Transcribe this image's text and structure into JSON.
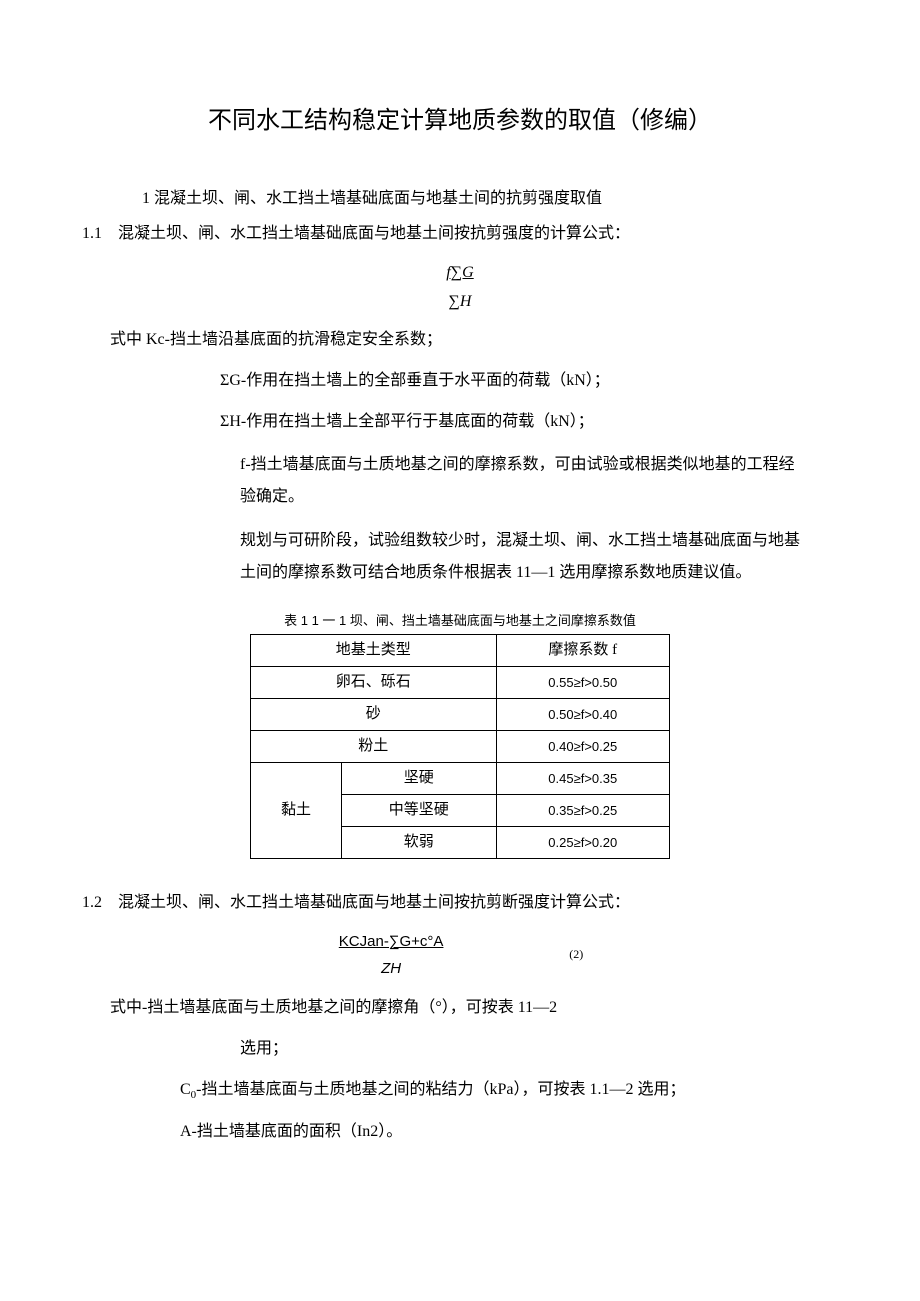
{
  "title": "不同水工结构稳定计算地质参数的取值（修编）",
  "section1": "1 混凝土坝、闸、水工挡土墙基础底面与地基土间的抗剪强度取值",
  "sub11_heading": "1.1　混凝土坝、闸、水工挡土墙基础底面与地基土间按抗剪强度的计算公式：",
  "formula1_num": "f∑G",
  "formula1_den": "∑H",
  "def_kc": "式中 Kc-挡土墙沿基底面的抗滑稳定安全系数；",
  "def_g": "ΣG-作用在挡土墙上的全部垂直于水平面的荷载（kN）；",
  "def_h": "ΣH-作用在挡土墙上全部平行于基底面的荷载（kN）；",
  "def_f": "f-挡土墙基底面与土质地基之间的摩擦系数，可由试验或根据类似地基的工程经验确定。",
  "def_note": "规划与可研阶段，试验组数较少时，混凝土坝、闸、水工挡土墙基础底面与地基土间的摩擦系数可结合地质条件根据表 11—1 选用摩擦系数地质建议值。",
  "table_caption": "表 1 1 一 1 坝、闸、挡土墙基础底面与地基土之间摩擦系数值",
  "table": {
    "header": {
      "c1": "地基土类型",
      "c2": "摩擦系数 f"
    },
    "rows": [
      {
        "c1": "卵石、砾石",
        "c2": "0.55≥f>0.50"
      },
      {
        "c1": "砂",
        "c2": "0.50≥f>0.40"
      },
      {
        "c1": "粉土",
        "c2": "0.40≥f>0.25"
      }
    ],
    "clay_label": "黏土",
    "clay_rows": [
      {
        "sub": "坚硬",
        "c2": "0.45≥f>0.35"
      },
      {
        "sub": "中等坚硬",
        "c2": "0.35≥f>0.25"
      },
      {
        "sub": "软弱",
        "c2": "0.25≥f>0.20"
      }
    ]
  },
  "sub12_heading": "1.2　混凝土坝、闸、水工挡土墙基础底面与地基土间按抗剪断强度计算公式：",
  "formula2_top": "KCJan-∑G+c°A",
  "formula2_bot": "ZH",
  "formula2_eqnum": "(2)",
  "def2_phi": "式中-挡土墙基底面与土质地基之间的摩擦角（°），可按表 11—2",
  "def2_phi_sub": "选用；",
  "def2_c0_label": "C",
  "def2_c0_sub": "0",
  "def2_c0_text": "-挡土墙基底面与土质地基之间的粘结力（kPa），可按表 1.1—2 选用；",
  "def2_a": "A-挡土墙基底面的面积（In2）。"
}
